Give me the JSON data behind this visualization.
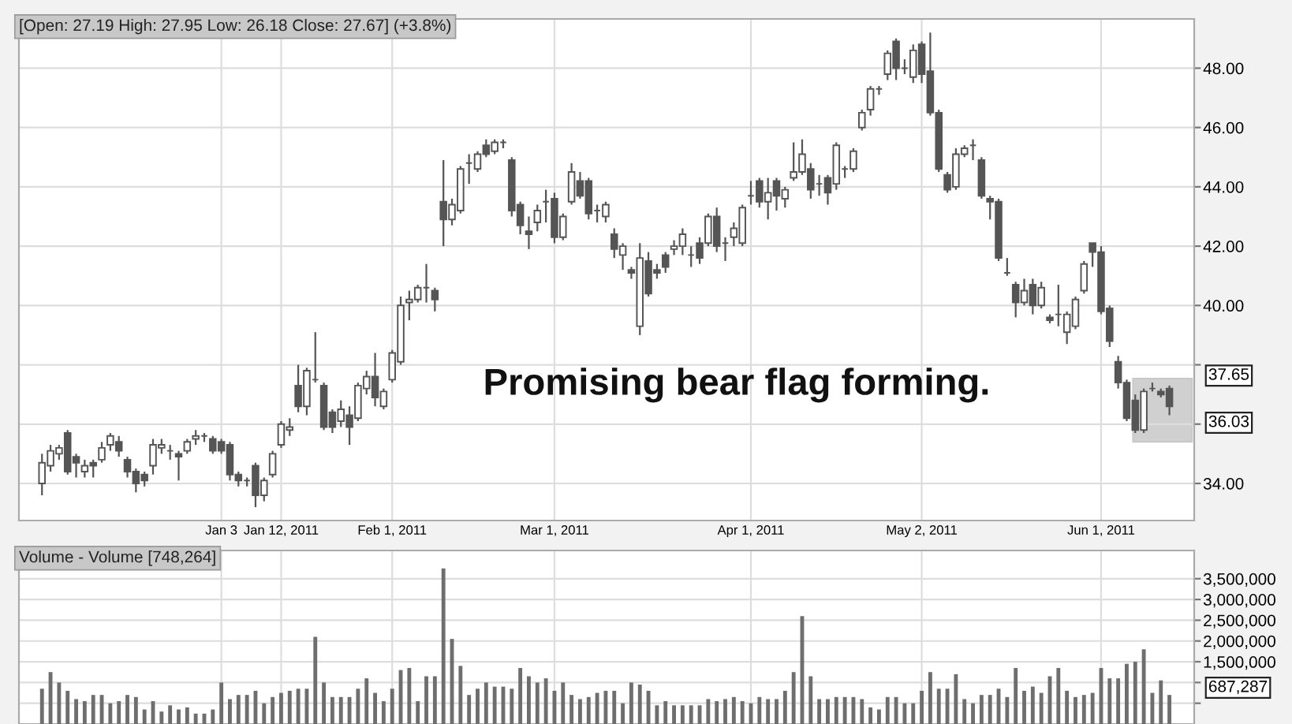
{
  "chart_data": [
    {
      "type": "candlestick",
      "title": "[Open: 27.19 High: 27.95 Low: 26.18 Close: 27.67] (+3.8%)",
      "color": "#555555",
      "grid": true,
      "categories": [
        null,
        null,
        null,
        null,
        null,
        null,
        null,
        null,
        null,
        null,
        null,
        null,
        null,
        null,
        null,
        null,
        null,
        null,
        null,
        null,
        null,
        "Jan 3",
        null,
        null,
        null,
        null,
        null,
        null,
        "Jan 12, 2011",
        null,
        null,
        null,
        null,
        null,
        null,
        null,
        null,
        null,
        null,
        null,
        null,
        "Feb 1, 2011",
        null,
        null,
        null,
        null,
        null,
        null,
        null,
        null,
        null,
        null,
        null,
        null,
        null,
        null,
        null,
        null,
        null,
        null,
        "Mar 1, 2011",
        null,
        null,
        null,
        null,
        null,
        null,
        null,
        null,
        null,
        null,
        null,
        null,
        null,
        null,
        null,
        null,
        null,
        null,
        null,
        null,
        null,
        null,
        "Apr 1, 2011",
        null,
        null,
        null,
        null,
        null,
        null,
        null,
        null,
        null,
        null,
        null,
        null,
        null,
        null,
        null,
        null,
        null,
        null,
        null,
        "May 2, 2011",
        null,
        null,
        null,
        null,
        null,
        null,
        null,
        null,
        null,
        null,
        null,
        null,
        null,
        null,
        null,
        null,
        null,
        null,
        null,
        null,
        "Jun 1, 2011",
        null,
        null,
        null,
        null,
        null,
        null,
        null,
        null
      ],
      "ohlc": [
        [
          34.0,
          35.0,
          33.6,
          34.7
        ],
        [
          34.6,
          35.3,
          34.4,
          35.1
        ],
        [
          35.0,
          35.3,
          34.8,
          35.2
        ],
        [
          35.7,
          35.8,
          34.3,
          34.4
        ],
        [
          34.9,
          35.0,
          34.2,
          34.7
        ],
        [
          34.4,
          34.8,
          34.2,
          34.6
        ],
        [
          34.7,
          34.8,
          34.2,
          34.6
        ],
        [
          34.8,
          35.4,
          34.7,
          35.2
        ],
        [
          35.3,
          35.7,
          35.1,
          35.6
        ],
        [
          35.4,
          35.6,
          34.9,
          35.1
        ],
        [
          34.8,
          34.9,
          34.2,
          34.4
        ],
        [
          34.4,
          34.5,
          33.7,
          34.0
        ],
        [
          34.3,
          34.4,
          33.9,
          34.1
        ],
        [
          34.6,
          35.5,
          34.3,
          35.3
        ],
        [
          35.2,
          35.5,
          35.0,
          35.3
        ],
        [
          35.1,
          35.3,
          34.8,
          35.1
        ],
        [
          35.0,
          35.1,
          34.1,
          34.9
        ],
        [
          35.1,
          35.5,
          35.0,
          35.4
        ],
        [
          35.5,
          35.8,
          35.3,
          35.6
        ],
        [
          35.6,
          35.7,
          35.4,
          35.6
        ],
        [
          35.5,
          35.6,
          35.0,
          35.1
        ],
        [
          35.4,
          35.5,
          35.0,
          35.1
        ],
        [
          35.3,
          35.4,
          34.1,
          34.3
        ],
        [
          34.3,
          34.4,
          33.9,
          34.1
        ],
        [
          34.1,
          34.2,
          33.9,
          34.1
        ],
        [
          34.6,
          34.7,
          33.2,
          33.6
        ],
        [
          33.6,
          34.2,
          33.4,
          34.1
        ],
        [
          34.3,
          35.1,
          34.2,
          35.0
        ],
        [
          35.3,
          36.1,
          35.2,
          36.0
        ],
        [
          35.8,
          36.2,
          35.6,
          35.9
        ],
        [
          37.3,
          38.0,
          36.4,
          36.6
        ],
        [
          36.6,
          37.9,
          36.3,
          37.8
        ],
        [
          37.5,
          39.1,
          37.4,
          37.5
        ],
        [
          37.3,
          37.4,
          35.8,
          35.9
        ],
        [
          36.4,
          36.5,
          35.7,
          35.9
        ],
        [
          36.1,
          36.8,
          35.9,
          36.5
        ],
        [
          36.3,
          36.6,
          35.3,
          35.9
        ],
        [
          36.2,
          37.4,
          36.1,
          37.3
        ],
        [
          37.2,
          37.8,
          37.0,
          37.6
        ],
        [
          37.6,
          38.4,
          36.6,
          36.9
        ],
        [
          36.6,
          37.2,
          36.5,
          37.1
        ],
        [
          37.5,
          38.5,
          37.4,
          38.4
        ],
        [
          38.1,
          40.3,
          38.0,
          40.0
        ],
        [
          40.1,
          40.5,
          39.5,
          40.2
        ],
        [
          40.2,
          40.7,
          40.1,
          40.6
        ],
        [
          40.6,
          41.4,
          40.1,
          40.6
        ],
        [
          40.5,
          40.6,
          39.8,
          40.2
        ],
        [
          43.5,
          44.9,
          42.0,
          42.9
        ],
        [
          42.9,
          43.6,
          42.7,
          43.4
        ],
        [
          43.2,
          44.7,
          43.1,
          44.6
        ],
        [
          44.8,
          45.1,
          44.1,
          44.8
        ],
        [
          44.6,
          45.2,
          44.5,
          45.1
        ],
        [
          45.4,
          45.6,
          45.0,
          45.1
        ],
        [
          45.2,
          45.6,
          45.1,
          45.5
        ],
        [
          45.5,
          45.6,
          45.3,
          45.5
        ],
        [
          44.9,
          45.0,
          43.0,
          43.2
        ],
        [
          43.4,
          43.5,
          42.4,
          42.7
        ],
        [
          42.5,
          43.0,
          41.9,
          42.4
        ],
        [
          42.8,
          43.4,
          42.5,
          43.2
        ],
        [
          43.5,
          43.9,
          42.8,
          43.5
        ],
        [
          43.6,
          43.8,
          42.1,
          42.3
        ],
        [
          42.3,
          43.1,
          42.2,
          43.0
        ],
        [
          43.5,
          44.8,
          43.4,
          44.5
        ],
        [
          44.2,
          44.5,
          43.6,
          43.7
        ],
        [
          44.2,
          44.3,
          42.9,
          43.1
        ],
        [
          43.2,
          43.4,
          42.8,
          43.2
        ],
        [
          43.0,
          43.5,
          42.8,
          43.4
        ],
        [
          42.4,
          42.6,
          41.6,
          41.9
        ],
        [
          41.7,
          42.1,
          41.2,
          42.0
        ],
        [
          41.2,
          41.3,
          40.9,
          41.1
        ],
        [
          39.3,
          42.1,
          39.0,
          41.6
        ],
        [
          41.5,
          41.8,
          40.3,
          40.4
        ],
        [
          41.2,
          41.4,
          40.9,
          41.1
        ],
        [
          41.7,
          41.8,
          41.1,
          41.3
        ],
        [
          41.9,
          42.2,
          41.7,
          42.0
        ],
        [
          42.0,
          42.6,
          41.7,
          42.4
        ],
        [
          41.7,
          42.0,
          41.3,
          41.7
        ],
        [
          42.1,
          42.3,
          41.4,
          41.6
        ],
        [
          42.1,
          43.1,
          42.0,
          43.0
        ],
        [
          43.0,
          43.3,
          41.8,
          42.0
        ],
        [
          42.1,
          42.3,
          41.5,
          42.1
        ],
        [
          42.3,
          42.8,
          42.0,
          42.6
        ],
        [
          42.1,
          43.4,
          42.0,
          43.3
        ],
        [
          43.7,
          44.2,
          43.4,
          43.7
        ],
        [
          44.2,
          44.3,
          43.3,
          43.5
        ],
        [
          43.5,
          44.3,
          42.9,
          43.8
        ],
        [
          44.2,
          44.3,
          43.2,
          43.7
        ],
        [
          43.6,
          44.0,
          43.3,
          43.9
        ],
        [
          44.3,
          45.5,
          44.2,
          44.5
        ],
        [
          44.5,
          45.6,
          44.4,
          45.1
        ],
        [
          44.6,
          44.8,
          43.6,
          43.9
        ],
        [
          44.1,
          44.4,
          43.7,
          44.1
        ],
        [
          44.3,
          44.4,
          43.4,
          43.8
        ],
        [
          44.1,
          45.5,
          43.9,
          45.4
        ],
        [
          44.6,
          44.7,
          44.3,
          44.6
        ],
        [
          44.6,
          45.3,
          44.5,
          45.2
        ],
        [
          46.0,
          46.6,
          45.9,
          46.5
        ],
        [
          46.6,
          47.4,
          46.4,
          47.3
        ],
        [
          47.3,
          47.4,
          47.1,
          47.3
        ],
        [
          47.8,
          48.6,
          47.6,
          48.5
        ],
        [
          48.9,
          49.0,
          47.6,
          48.0
        ],
        [
          48.0,
          48.3,
          47.8,
          48.0
        ],
        [
          47.7,
          48.8,
          47.5,
          48.6
        ],
        [
          48.8,
          48.9,
          47.5,
          47.8
        ],
        [
          47.9,
          49.2,
          46.4,
          46.5
        ],
        [
          46.5,
          46.6,
          44.5,
          44.6
        ],
        [
          44.4,
          44.5,
          43.8,
          43.9
        ],
        [
          44.0,
          45.3,
          43.9,
          45.1
        ],
        [
          45.1,
          45.4,
          45.0,
          45.3
        ],
        [
          45.4,
          45.6,
          44.9,
          45.4
        ],
        [
          44.9,
          45.0,
          43.6,
          43.7
        ],
        [
          43.6,
          43.7,
          42.9,
          43.5
        ],
        [
          43.5,
          43.6,
          41.5,
          41.6
        ],
        [
          41.1,
          41.6,
          41.0,
          41.1
        ],
        [
          40.7,
          40.8,
          39.6,
          40.1
        ],
        [
          40.1,
          40.9,
          40.0,
          40.5
        ],
        [
          40.7,
          40.9,
          39.7,
          40.0
        ],
        [
          40.0,
          40.8,
          39.9,
          40.6
        ],
        [
          39.6,
          39.7,
          39.4,
          39.5
        ],
        [
          39.7,
          40.7,
          39.3,
          39.7
        ],
        [
          39.1,
          39.8,
          38.7,
          39.7
        ],
        [
          39.3,
          40.3,
          39.2,
          40.2
        ],
        [
          40.5,
          41.5,
          40.4,
          41.4
        ],
        [
          42.1,
          42.1,
          41.3,
          41.8
        ],
        [
          41.8,
          42.0,
          39.7,
          39.8
        ],
        [
          39.9,
          40.0,
          38.6,
          38.8
        ],
        [
          38.1,
          38.3,
          37.2,
          37.4
        ],
        [
          37.4,
          37.5,
          36.1,
          36.2
        ],
        [
          36.8,
          37.0,
          35.7,
          35.8
        ],
        [
          35.8,
          37.2,
          35.7,
          37.1
        ],
        [
          37.2,
          37.4,
          37.1,
          37.2
        ],
        [
          37.1,
          37.2,
          36.9,
          37.0
        ],
        [
          37.2,
          37.3,
          36.3,
          36.6
        ]
      ],
      "ylim": [
        32.75,
        49.66
      ],
      "yticks": [
        {
          "value": 34,
          "label": "34.00"
        },
        {
          "value": 36,
          "label": null
        },
        {
          "value": 38,
          "label": null
        },
        {
          "value": 40,
          "label": "40.00"
        },
        {
          "value": 42,
          "label": "42.00"
        },
        {
          "value": 44,
          "label": "44.00"
        },
        {
          "value": 46,
          "label": "46.00"
        },
        {
          "value": 48,
          "label": "48.00"
        }
      ],
      "annotations": [
        "Promising bear flag forming.",
        "37.65",
        "36.03"
      ]
    },
    {
      "type": "bar",
      "title": "Volume - Volume [748,264]",
      "color": "#6e6e6e",
      "grid": true,
      "tick_labels": "y",
      "categories": [
        null,
        null,
        null,
        null,
        null,
        null,
        null,
        null,
        null,
        null,
        null,
        null,
        null,
        null,
        null,
        null,
        null,
        null,
        null,
        null,
        null,
        null,
        null,
        null,
        null,
        null,
        null,
        null,
        null,
        null,
        null,
        null,
        null,
        null,
        null,
        null,
        null,
        null,
        null,
        null,
        null,
        null,
        null,
        null,
        null,
        null,
        null,
        null,
        null,
        null,
        null,
        null,
        null,
        null,
        null,
        null,
        null,
        null,
        null,
        null,
        null,
        null,
        null,
        null,
        null,
        null,
        null,
        null,
        null,
        null,
        null,
        null,
        null,
        null,
        null,
        null,
        null,
        null,
        null,
        null,
        null,
        null,
        null,
        null,
        null,
        null,
        null,
        null,
        null,
        null,
        null,
        null,
        null,
        null,
        null,
        null,
        null,
        null,
        null,
        null,
        null,
        null,
        null,
        null,
        null,
        null,
        null,
        null,
        null,
        null,
        null,
        null,
        null,
        null,
        null,
        null,
        null,
        null,
        null,
        null,
        null,
        null,
        null,
        null,
        null,
        null,
        null,
        null,
        null,
        null,
        null,
        null,
        null
      ],
      "values": [
        850000,
        1250000,
        1000000,
        800000,
        600000,
        550000,
        700000,
        700000,
        500000,
        550000,
        700000,
        650000,
        350000,
        550000,
        300000,
        450000,
        350000,
        400000,
        250000,
        250000,
        350000,
        1000000,
        600000,
        700000,
        700000,
        800000,
        500000,
        650000,
        750000,
        800000,
        850000,
        850000,
        2100000,
        1000000,
        650000,
        650000,
        650000,
        850000,
        1100000,
        750000,
        550000,
        850000,
        1300000,
        1350000,
        550000,
        1150000,
        1150000,
        3750000,
        2050000,
        1400000,
        700000,
        850000,
        1000000,
        900000,
        900000,
        850000,
        1350000,
        1150000,
        1000000,
        1100000,
        800000,
        1000000,
        700000,
        600000,
        650000,
        750000,
        800000,
        800000,
        500000,
        1000000,
        950000,
        800000,
        450000,
        550000,
        450000,
        450000,
        450000,
        450000,
        600000,
        550000,
        600000,
        650000,
        550000,
        500000,
        650000,
        600000,
        600000,
        800000,
        1250000,
        2600000,
        1150000,
        600000,
        600000,
        650000,
        650000,
        650000,
        600000,
        400000,
        350000,
        650000,
        650000,
        500000,
        500000,
        800000,
        1250000,
        850000,
        850000,
        1200000,
        600000,
        500000,
        700000,
        700000,
        850000,
        650000,
        1350000,
        800000,
        900000,
        750000,
        1150000,
        1350000,
        800000,
        650000,
        700000,
        750000,
        1350000,
        1100000,
        1100000,
        1450000,
        1500000,
        1800000,
        750000,
        1050000,
        700000
      ],
      "ylim": [
        0,
        4180000
      ],
      "yticks": [
        {
          "value": 500000,
          "label": null
        },
        {
          "value": 1000000,
          "label": null
        },
        {
          "value": 1500000,
          "label": "1,500,000"
        },
        {
          "value": 2000000,
          "label": "2,000,000"
        },
        {
          "value": 2500000,
          "label": "2,500,000"
        },
        {
          "value": 3000000,
          "label": "3,000,000"
        },
        {
          "value": 3500000,
          "label": "3,500,000"
        }
      ],
      "annotations": [
        "687,287"
      ]
    }
  ]
}
